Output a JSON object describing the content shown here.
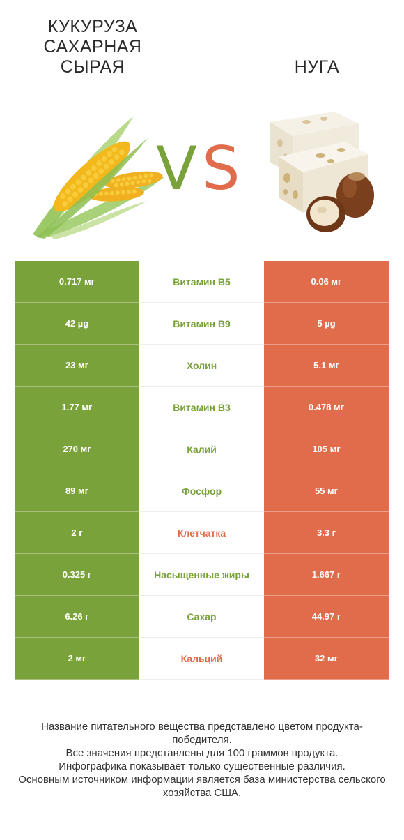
{
  "header": {
    "left_title": "КУКУРУЗА САХАРНАЯ СЫРАЯ",
    "right_title": "НУГА",
    "vs_v": "V",
    "vs_s": "S"
  },
  "images": {
    "left": "corn-image",
    "right": "nougat-image"
  },
  "colors": {
    "left_winner": "#7aa23a",
    "right_winner": "#e16c4c"
  },
  "rows": [
    {
      "left": "0.717 мг",
      "name": "Витамин B5",
      "right": "0.06 мг",
      "winner": "left"
    },
    {
      "left": "42 µg",
      "name": "Витамин B9",
      "right": "5 µg",
      "winner": "left"
    },
    {
      "left": "23 мг",
      "name": "Холин",
      "right": "5.1 мг",
      "winner": "left"
    },
    {
      "left": "1.77 мг",
      "name": "Витамин B3",
      "right": "0.478 мг",
      "winner": "left"
    },
    {
      "left": "270 мг",
      "name": "Калий",
      "right": "105 мг",
      "winner": "left"
    },
    {
      "left": "89 мг",
      "name": "Фосфор",
      "right": "55 мг",
      "winner": "left"
    },
    {
      "left": "2 г",
      "name": "Клетчатка",
      "right": "3.3 г",
      "winner": "right"
    },
    {
      "left": "0.325 г",
      "name": "Насыщенные жиры",
      "right": "1.667 г",
      "winner": "left"
    },
    {
      "left": "6.26 г",
      "name": "Сахар",
      "right": "44.97 г",
      "winner": "left"
    },
    {
      "left": "2 мг",
      "name": "Кальций",
      "right": "32 мг",
      "winner": "right"
    }
  ],
  "footer": {
    "line1": "Название питательного вещества представлено цветом продукта-победителя.",
    "line2": "Все значения представлены для 100 граммов продукта.",
    "line3": "Инфографика показывает только существенные различия.",
    "line4": "Основным источником информации является база министерства сельского хозяйства США."
  }
}
